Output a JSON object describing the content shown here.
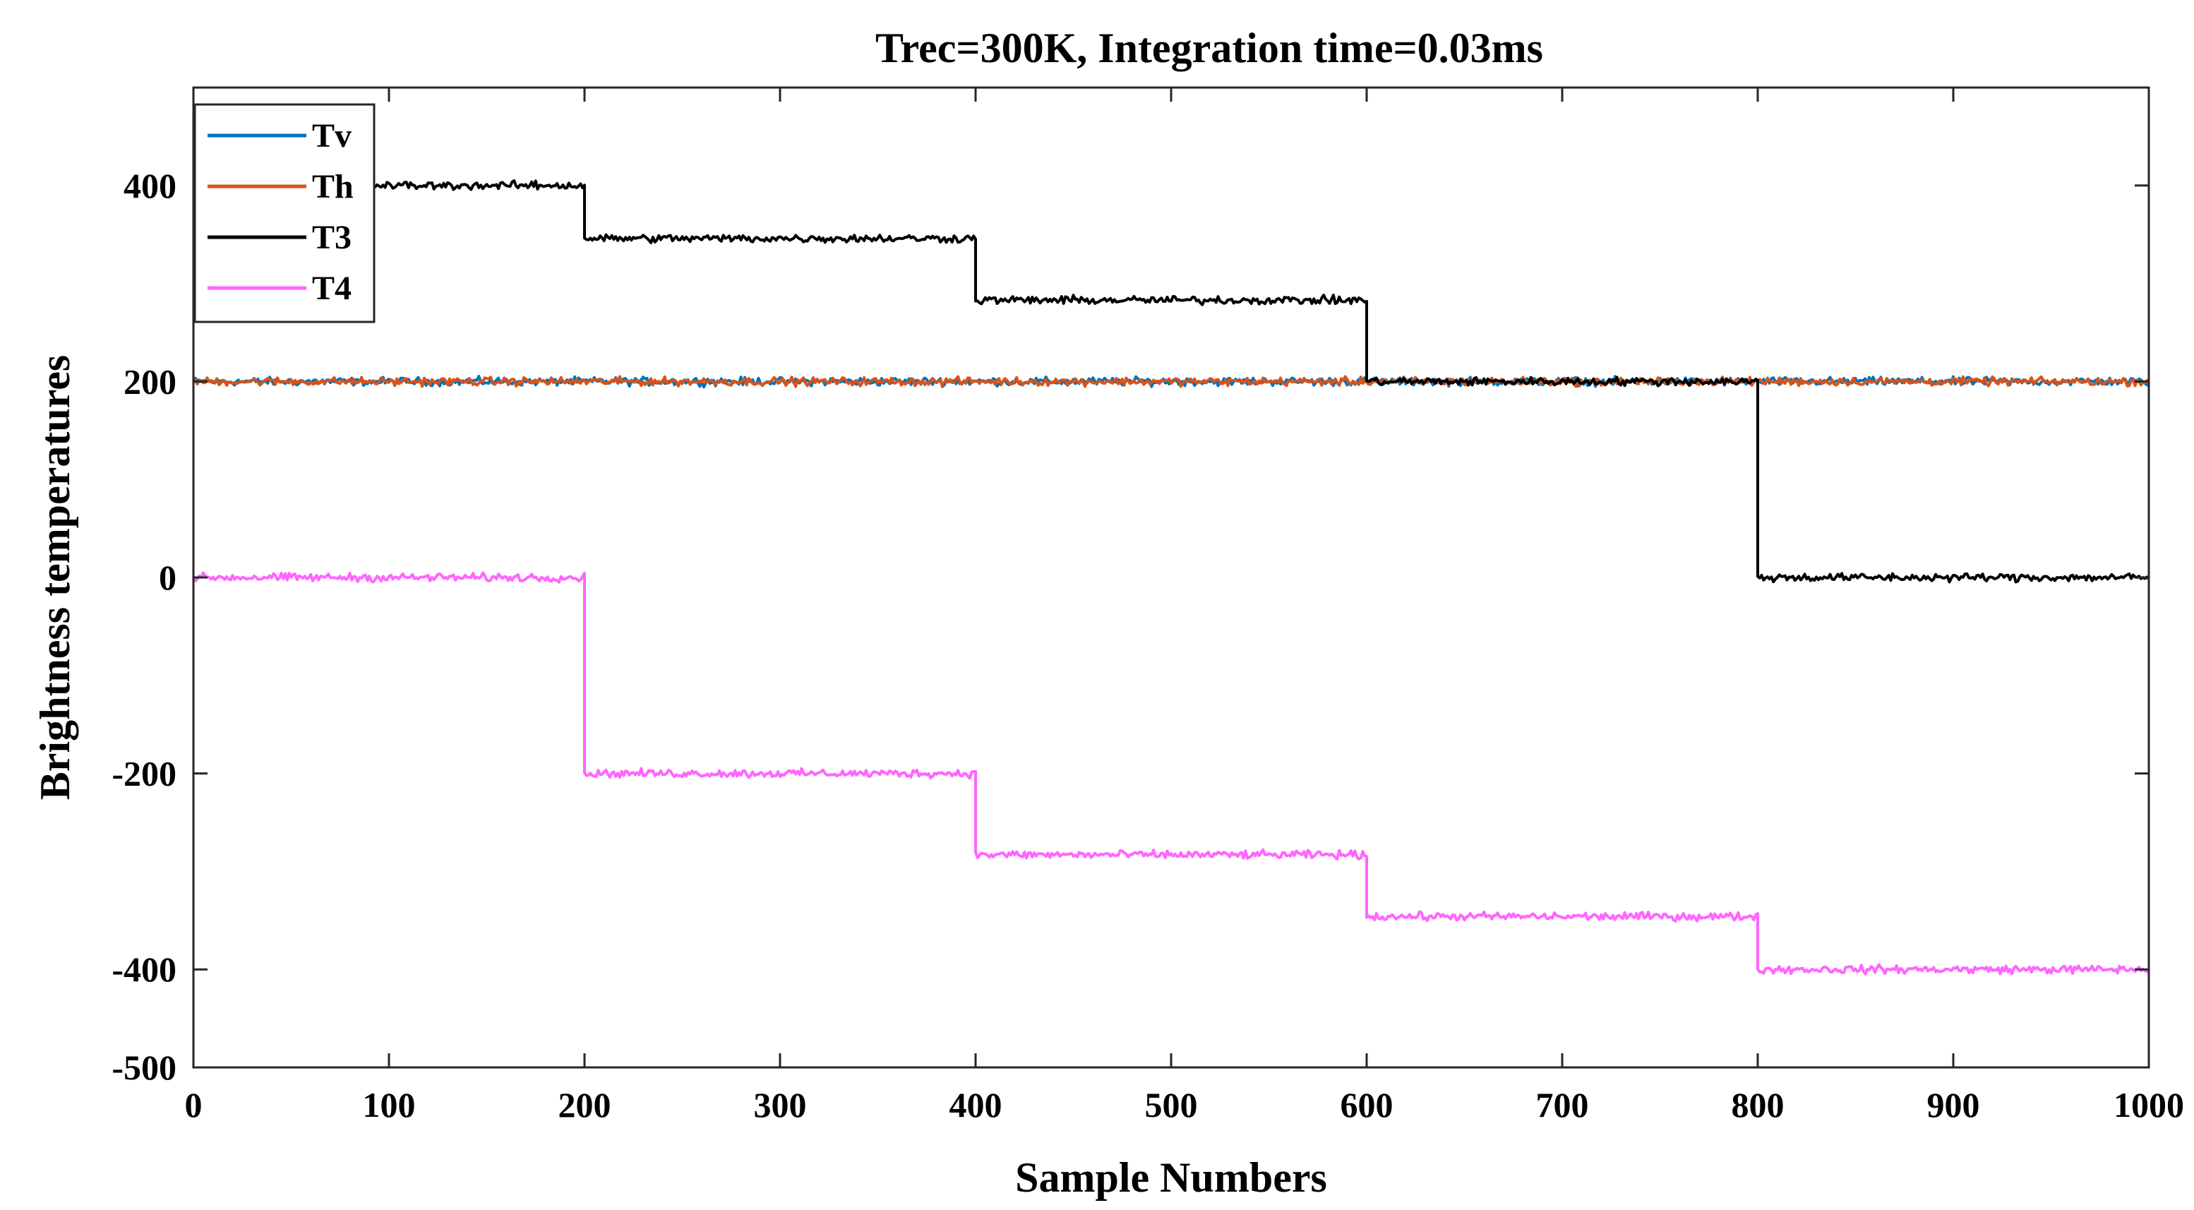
{
  "chart_data": {
    "type": "line",
    "title": "Trec=300K, Integration time=0.03ms",
    "xlabel": "Sample Numbers",
    "ylabel": "Brightness temperatures",
    "xlim": [
      0,
      1000
    ],
    "ylim": [
      -500,
      500
    ],
    "xticks": [
      0,
      100,
      200,
      300,
      400,
      500,
      600,
      700,
      800,
      900,
      1000
    ],
    "yticks": [
      -500,
      -400,
      -200,
      0,
      200,
      400
    ],
    "grid": false,
    "legend_position": "top-left",
    "noise_amplitude": 4,
    "series": [
      {
        "name": "Tv",
        "color": "#0072BD",
        "segments": [
          {
            "x": [
              0,
              1000
            ],
            "y": 200
          }
        ]
      },
      {
        "name": "Th",
        "color": "#D95319",
        "segments": [
          {
            "x": [
              0,
              1000
            ],
            "y": 200
          }
        ]
      },
      {
        "name": "T3",
        "color": "#000000",
        "segments": [
          {
            "x": [
              0,
              200
            ],
            "y": 400
          },
          {
            "x": [
              200,
              400
            ],
            "y": 346
          },
          {
            "x": [
              400,
              600
            ],
            "y": 283
          },
          {
            "x": [
              600,
              800
            ],
            "y": 200
          },
          {
            "x": [
              800,
              1000
            ],
            "y": 0
          }
        ]
      },
      {
        "name": "T4",
        "color": "#FF66FF",
        "segments": [
          {
            "x": [
              0,
              200
            ],
            "y": 0
          },
          {
            "x": [
              200,
              400
            ],
            "y": -200
          },
          {
            "x": [
              400,
              600
            ],
            "y": -283
          },
          {
            "x": [
              600,
              800
            ],
            "y": -346
          },
          {
            "x": [
              800,
              1000
            ],
            "y": -400
          }
        ]
      }
    ]
  }
}
